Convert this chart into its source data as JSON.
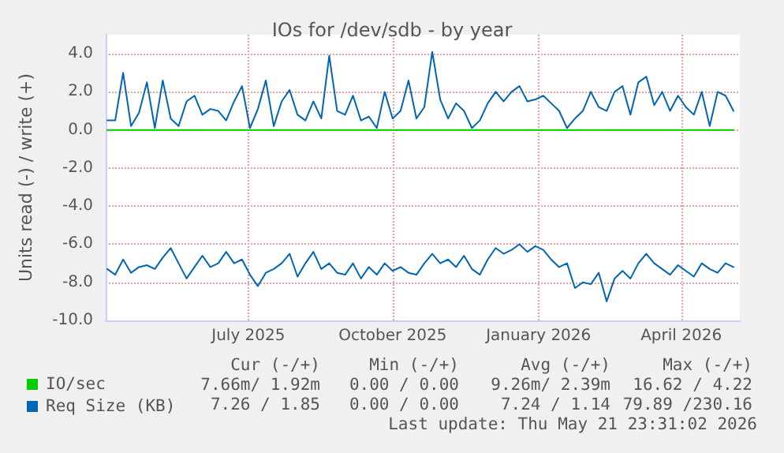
{
  "chart_data": {
    "type": "line",
    "title": "IOs for /dev/sdb - by year",
    "ylabel": "Units read (-) / write (+)",
    "x": [
      "2025-04-17",
      "2025-04-22",
      "2025-04-27",
      "2025-05-02",
      "2025-05-07",
      "2025-05-12",
      "2025-05-17",
      "2025-05-22",
      "2025-05-27",
      "2025-06-01",
      "2025-06-06",
      "2025-06-11",
      "2025-06-16",
      "2025-06-21",
      "2025-06-26",
      "2025-07-01",
      "2025-07-06",
      "2025-07-11",
      "2025-07-16",
      "2025-07-21",
      "2025-07-26",
      "2025-07-31",
      "2025-08-05",
      "2025-08-10",
      "2025-08-15",
      "2025-08-20",
      "2025-08-25",
      "2025-08-30",
      "2025-09-04",
      "2025-09-09",
      "2025-09-14",
      "2025-09-19",
      "2025-09-24",
      "2025-09-29",
      "2025-10-04",
      "2025-10-09",
      "2025-10-14",
      "2025-10-19",
      "2025-10-24",
      "2025-10-29",
      "2025-11-03",
      "2025-11-08",
      "2025-11-13",
      "2025-11-18",
      "2025-11-23",
      "2025-11-28",
      "2025-12-03",
      "2025-12-08",
      "2025-12-13",
      "2025-12-18",
      "2025-12-23",
      "2025-12-28",
      "2026-01-02",
      "2026-01-07",
      "2026-01-12",
      "2026-01-17",
      "2026-01-22",
      "2026-01-27",
      "2026-02-01",
      "2026-02-06",
      "2026-02-11",
      "2026-02-16",
      "2026-02-21",
      "2026-02-26",
      "2026-03-03",
      "2026-03-08",
      "2026-03-13",
      "2026-03-18",
      "2026-03-23",
      "2026-03-28",
      "2026-04-02",
      "2026-04-07",
      "2026-04-12",
      "2026-04-17",
      "2026-04-22",
      "2026-04-27",
      "2026-05-02",
      "2026-05-07",
      "2026-05-12",
      "2026-05-17"
    ],
    "series": [
      {
        "name": "IO/sec",
        "color": "#00cc00",
        "x": [
          "2025-04-17",
          "2026-05-17"
        ],
        "values": [
          0,
          0
        ]
      },
      {
        "name": "Req Size (KB)",
        "color": "#0066b3",
        "values": [
          0.5,
          0.5,
          3.0,
          0.2,
          0.9,
          2.5,
          0.1,
          2.6,
          0.6,
          0.2,
          1.5,
          1.8,
          0.8,
          1.1,
          1.0,
          0.5,
          1.5,
          2.3,
          0.1,
          1.1,
          2.6,
          0.2,
          1.5,
          2.1,
          0.8,
          0.5,
          1.5,
          0.6,
          3.9,
          1.0,
          0.8,
          1.8,
          0.5,
          0.7,
          0.1,
          2.0,
          0.6,
          1.0,
          2.6,
          0.6,
          1.2,
          4.1,
          1.6,
          0.6,
          1.4,
          1.0,
          0.1,
          0.5,
          1.4,
          2.0,
          1.5,
          2.0,
          2.3,
          1.5,
          1.6,
          1.8,
          1.4,
          1.0,
          0.1,
          0.6,
          1.0,
          2.0,
          1.2,
          1.0,
          2.0,
          2.3,
          0.8,
          2.5,
          2.8,
          1.3,
          2.0,
          1.0,
          1.8,
          1.2,
          0.8,
          2.0,
          0.2,
          2.0,
          1.8,
          1.0
        ]
      },
      {
        "color": "#0066b3",
        "values": [
          -7.3,
          -7.6,
          -6.8,
          -7.5,
          -7.2,
          -7.1,
          -7.3,
          -6.7,
          -6.2,
          -7.0,
          -7.8,
          -7.2,
          -6.6,
          -7.2,
          -7.0,
          -6.4,
          -7.0,
          -6.8,
          -7.6,
          -8.2,
          -7.5,
          -7.3,
          -7.0,
          -6.5,
          -7.7,
          -7.0,
          -6.4,
          -7.3,
          -7.0,
          -7.5,
          -7.6,
          -7.0,
          -7.8,
          -7.2,
          -7.6,
          -7.0,
          -7.4,
          -7.2,
          -7.5,
          -7.6,
          -7.0,
          -6.5,
          -7.0,
          -6.8,
          -7.2,
          -6.6,
          -7.3,
          -7.6,
          -6.8,
          -6.2,
          -6.5,
          -6.3,
          -6.0,
          -6.4,
          -6.1,
          -6.3,
          -6.8,
          -7.2,
          -7.0,
          -8.3,
          -8.0,
          -8.1,
          -7.5,
          -9.0,
          -7.8,
          -7.4,
          -7.8,
          -7.0,
          -6.5,
          -7.0,
          -7.3,
          -7.6,
          -7.1,
          -7.4,
          -7.7,
          -7.0,
          -7.3,
          -7.5,
          -7.0,
          -7.2
        ]
      }
    ],
    "xlim": [
      "2025-04-16",
      "2026-05-21"
    ],
    "xticks": [
      {
        "value": "2025-07-15",
        "label": "July 2025"
      },
      {
        "value": "2025-10-14",
        "label": "October 2025"
      },
      {
        "value": "2026-01-14",
        "label": "January 2026"
      },
      {
        "value": "2026-04-14",
        "label": "April 2026"
      }
    ],
    "ylim": [
      -10,
      5
    ],
    "yticks": [
      {
        "value": -10,
        "label": "-10.0"
      },
      {
        "value": -8,
        "label": "-8.0"
      },
      {
        "value": -6,
        "label": "-6.0"
      },
      {
        "value": -4,
        "label": "-4.0"
      },
      {
        "value": -2,
        "label": "-2.0"
      },
      {
        "value": 0,
        "label": "0.0"
      },
      {
        "value": 2,
        "label": "2.0"
      },
      {
        "value": 4,
        "label": "4.0"
      }
    ],
    "grid": true,
    "legend": "bottom left",
    "marker": "none",
    "line_style": "solid",
    "annotations": [
      "Cur (-/+)",
      "Min (-/+)",
      "Avg (-/+)",
      "Max (-/+)",
      "7.66m/ 1.92m",
      "0.00 / 0.00",
      "9.26m/ 2.39m",
      "16.62 / 4.22",
      "7.26 / 1.85",
      "0.00 / 0.00",
      "7.24 / 1.14",
      "79.89 /230.16",
      "Last update: Thu May 21 23:31:02 2026"
    ]
  }
}
